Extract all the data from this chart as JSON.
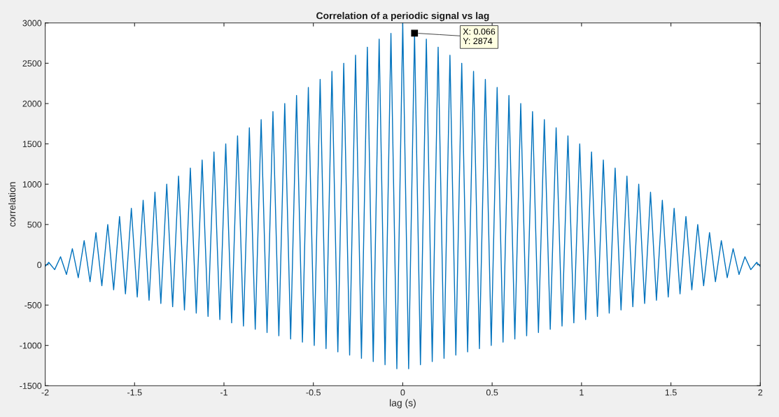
{
  "chart_data": {
    "type": "line",
    "title": "Correlation of a periodic signal vs lag",
    "xlabel": "lag (s)",
    "ylabel": "correlation",
    "xlim": [
      -2,
      2
    ],
    "ylim": [
      -1500,
      3000
    ],
    "xticks": [
      -2,
      -1.5,
      -1,
      -0.5,
      0,
      0.5,
      1,
      1.5,
      2
    ],
    "yticks": [
      -1500,
      -1000,
      -500,
      0,
      500,
      1000,
      1500,
      2000,
      2500,
      3000
    ],
    "grid": false,
    "marker": "none",
    "line_style": "solid",
    "annotations": [
      {
        "text": "X: 0.066\nY: 2874",
        "x": 0.066,
        "y": 2874
      }
    ],
    "series": [
      {
        "color": "#0072bd",
        "x": [
          -2,
          -1.98,
          -1.947,
          -1.914,
          -1.881,
          -1.848,
          -1.815,
          -1.782,
          -1.749,
          -1.716,
          -1.683,
          -1.65,
          -1.617,
          -1.584,
          -1.551,
          -1.518,
          -1.485,
          -1.452,
          -1.419,
          -1.386,
          -1.353,
          -1.32,
          -1.287,
          -1.254,
          -1.221,
          -1.188,
          -1.155,
          -1.122,
          -1.089,
          -1.056,
          -1.023,
          -0.99,
          -0.957,
          -0.924,
          -0.891,
          -0.858,
          -0.825,
          -0.792,
          -0.759,
          -0.726,
          -0.693,
          -0.66,
          -0.627,
          -0.594,
          -0.561,
          -0.528,
          -0.495,
          -0.462,
          -0.429,
          -0.396,
          -0.363,
          -0.33,
          -0.297,
          -0.264,
          -0.231,
          -0.198,
          -0.165,
          -0.132,
          -0.099,
          -0.066,
          -0.033,
          0,
          0.033,
          0.066,
          0.099,
          0.132,
          0.165,
          0.198,
          0.231,
          0.264,
          0.297,
          0.33,
          0.363,
          0.396,
          0.429,
          0.462,
          0.495,
          0.528,
          0.561,
          0.594,
          0.627,
          0.66,
          0.693,
          0.726,
          0.759,
          0.792,
          0.825,
          0.858,
          0.891,
          0.924,
          0.957,
          0.99,
          1.023,
          1.056,
          1.089,
          1.122,
          1.155,
          1.188,
          1.221,
          1.254,
          1.287,
          1.32,
          1.353,
          1.386,
          1.419,
          1.452,
          1.485,
          1.518,
          1.551,
          1.584,
          1.617,
          1.65,
          1.683,
          1.716,
          1.749,
          1.782,
          1.815,
          1.848,
          1.881,
          1.914,
          1.947,
          1.98,
          2
        ],
        "values": [
          -20,
          30,
          -60,
          100,
          -120,
          200,
          -160,
          300,
          -210,
          400,
          -260,
          500,
          -310,
          600,
          -360,
          700,
          -400,
          800,
          -440,
          900,
          -480,
          1000,
          -520,
          1100,
          -560,
          1200,
          -600,
          1300,
          -640,
          1400,
          -680,
          1500,
          -720,
          1600,
          -760,
          1700,
          -800,
          1800,
          -840,
          1900,
          -880,
          2000,
          -920,
          2100,
          -960,
          2200,
          -1000,
          2300,
          -1040,
          2400,
          -1080,
          2500,
          -1120,
          2600,
          -1160,
          2700,
          -1200,
          2800,
          -1240,
          2870,
          -1290,
          3000,
          -1290,
          2874,
          -1240,
          2800,
          -1200,
          2700,
          -1160,
          2600,
          -1120,
          2500,
          -1080,
          2400,
          -1040,
          2300,
          -1000,
          2200,
          -960,
          2100,
          -920,
          2000,
          -880,
          1900,
          -840,
          1800,
          -800,
          1700,
          -760,
          1600,
          -720,
          1500,
          -680,
          1400,
          -640,
          1300,
          -600,
          1200,
          -560,
          1100,
          -520,
          1000,
          -480,
          900,
          -440,
          800,
          -400,
          700,
          -360,
          600,
          -310,
          500,
          -260,
          400,
          -210,
          300,
          -160,
          200,
          -120,
          100,
          -60,
          30,
          -20
        ]
      }
    ]
  }
}
